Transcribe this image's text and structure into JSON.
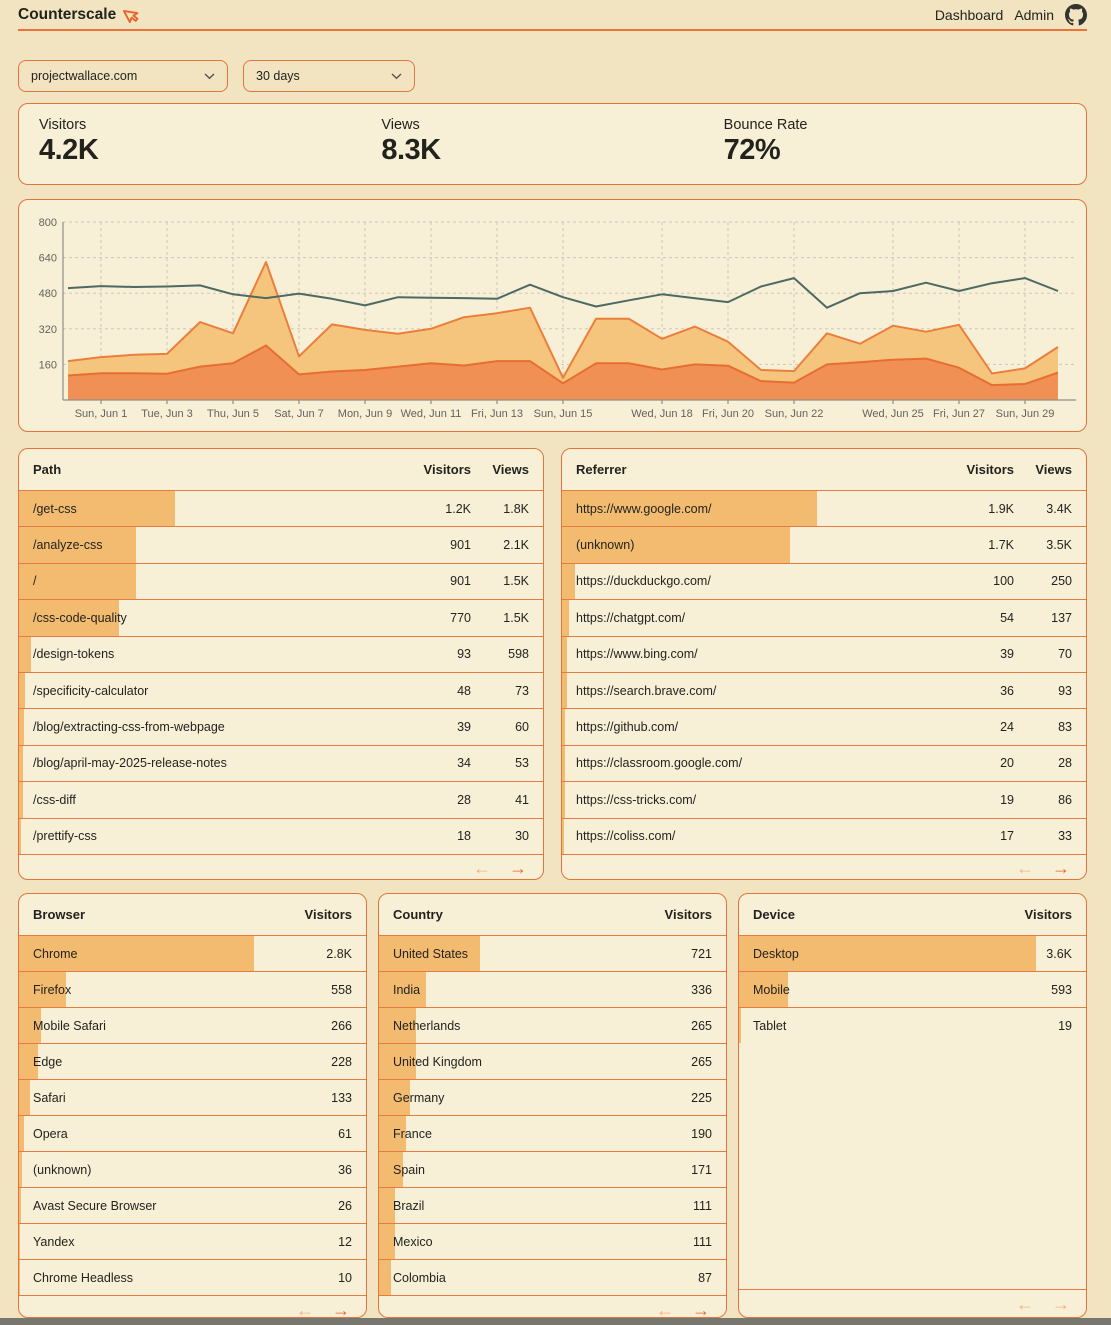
{
  "header": {
    "brand": "Counterscale",
    "nav": [
      "Dashboard",
      "Admin"
    ]
  },
  "filters": {
    "site_selected": "projectwallace.com",
    "range_selected": "30 days"
  },
  "stats": {
    "items": [
      {
        "label": "Visitors",
        "value": "4.2K"
      },
      {
        "label": "Views",
        "value": "8.3K"
      },
      {
        "label": "Bounce Rate",
        "value": "72%"
      }
    ]
  },
  "chart_data": {
    "type": "area",
    "title": "",
    "xlabel": "",
    "ylabel": "",
    "ylim": [
      0,
      800
    ],
    "yticks": [
      160,
      320,
      480,
      640,
      800
    ],
    "grid": true,
    "legend": "none",
    "num_points": 31,
    "xticks": [
      {
        "index": 1,
        "label": "Sun, Jun 1"
      },
      {
        "index": 3,
        "label": "Tue, Jun 3"
      },
      {
        "index": 5,
        "label": "Thu, Jun 5"
      },
      {
        "index": 7,
        "label": "Sat, Jun 7"
      },
      {
        "index": 9,
        "label": "Mon, Jun 9"
      },
      {
        "index": 11,
        "label": "Wed, Jun 11"
      },
      {
        "index": 13,
        "label": "Fri, Jun 13"
      },
      {
        "index": 15,
        "label": "Sun, Jun 15"
      },
      {
        "index": 18,
        "label": "Wed, Jun 18"
      },
      {
        "index": 20,
        "label": "Fri, Jun 20"
      },
      {
        "index": 22,
        "label": "Sun, Jun 22"
      },
      {
        "index": 25,
        "label": "Wed, Jun 25"
      },
      {
        "index": 27,
        "label": "Fri, Jun 27"
      },
      {
        "index": 29,
        "label": "Sun, Jun 29"
      }
    ],
    "series": [
      {
        "name": "views",
        "type": "area",
        "color": "#f6c57d",
        "stroke": "#ea7f3c",
        "values": [
          175,
          193,
          203,
          207,
          350,
          300,
          620,
          196,
          340,
          315,
          298,
          320,
          372,
          390,
          415,
          100,
          365,
          365,
          275,
          330,
          262,
          135,
          130,
          300,
          253,
          334,
          307,
          338,
          119,
          142,
          238
        ]
      },
      {
        "name": "visitors",
        "type": "area",
        "color": "#f09055",
        "stroke": "#e76e31",
        "values": [
          110,
          120,
          120,
          118,
          150,
          165,
          245,
          115,
          128,
          135,
          150,
          165,
          155,
          175,
          175,
          75,
          165,
          165,
          137,
          160,
          154,
          85,
          78,
          160,
          170,
          181,
          186,
          145,
          67,
          72,
          123
        ]
      },
      {
        "name": "unlabeled-trend-line",
        "type": "line",
        "color": "#4c6a62",
        "values": [
          503,
          512,
          508,
          510,
          515,
          475,
          458,
          478,
          455,
          425,
          462,
          460,
          458,
          455,
          518,
          462,
          420,
          448,
          475,
          457,
          440,
          510,
          548,
          415,
          480,
          490,
          527,
          490,
          525,
          548,
          490
        ]
      }
    ]
  },
  "tables": {
    "path": {
      "title": "Path",
      "value_headers": [
        "Visitors",
        "Views"
      ],
      "rows": [
        {
          "label": "/get-css",
          "values": [
            "1.2K",
            "1.8K"
          ],
          "num": 1200
        },
        {
          "label": "/analyze-css",
          "values": [
            "901",
            "2.1K"
          ],
          "num": 901
        },
        {
          "label": "/",
          "values": [
            "901",
            "1.5K"
          ],
          "num": 901
        },
        {
          "label": "/css-code-quality",
          "values": [
            "770",
            "1.5K"
          ],
          "num": 770
        },
        {
          "label": "/design-tokens",
          "values": [
            "93",
            "598"
          ],
          "num": 93
        },
        {
          "label": "/specificity-calculator",
          "values": [
            "48",
            "73"
          ],
          "num": 48
        },
        {
          "label": "/blog/extracting-css-from-webpage",
          "values": [
            "39",
            "60"
          ],
          "num": 39
        },
        {
          "label": "/blog/april-may-2025-release-notes",
          "values": [
            "34",
            "53"
          ],
          "num": 34
        },
        {
          "label": "/css-diff",
          "values": [
            "28",
            "41"
          ],
          "num": 28
        },
        {
          "label": "/prettify-css",
          "values": [
            "18",
            "30"
          ],
          "num": 18
        }
      ],
      "pagination": {
        "prev_enabled": false,
        "next_enabled": true
      }
    },
    "referrer": {
      "title": "Referrer",
      "value_headers": [
        "Visitors",
        "Views"
      ],
      "rows": [
        {
          "label": "https://www.google.com/",
          "values": [
            "1.9K",
            "3.4K"
          ],
          "num": 1900
        },
        {
          "label": "(unknown)",
          "values": [
            "1.7K",
            "3.5K"
          ],
          "num": 1700
        },
        {
          "label": "https://duckduckgo.com/",
          "values": [
            "100",
            "250"
          ],
          "num": 100
        },
        {
          "label": "https://chatgpt.com/",
          "values": [
            "54",
            "137"
          ],
          "num": 54
        },
        {
          "label": "https://www.bing.com/",
          "values": [
            "39",
            "70"
          ],
          "num": 39
        },
        {
          "label": "https://search.brave.com/",
          "values": [
            "36",
            "93"
          ],
          "num": 36
        },
        {
          "label": "https://github.com/",
          "values": [
            "24",
            "83"
          ],
          "num": 24
        },
        {
          "label": "https://classroom.google.com/",
          "values": [
            "20",
            "28"
          ],
          "num": 20
        },
        {
          "label": "https://css-tricks.com/",
          "values": [
            "19",
            "86"
          ],
          "num": 19
        },
        {
          "label": "https://coliss.com/",
          "values": [
            "17",
            "33"
          ],
          "num": 17
        }
      ],
      "pagination": {
        "prev_enabled": false,
        "next_enabled": true
      }
    },
    "browser": {
      "title": "Browser",
      "value_headers": [
        "Visitors"
      ],
      "rows": [
        {
          "label": "Chrome",
          "values": [
            "2.8K"
          ],
          "num": 2800
        },
        {
          "label": "Firefox",
          "values": [
            "558"
          ],
          "num": 558
        },
        {
          "label": "Mobile Safari",
          "values": [
            "266"
          ],
          "num": 266
        },
        {
          "label": "Edge",
          "values": [
            "228"
          ],
          "num": 228
        },
        {
          "label": "Safari",
          "values": [
            "133"
          ],
          "num": 133
        },
        {
          "label": "Opera",
          "values": [
            "61"
          ],
          "num": 61
        },
        {
          "label": "(unknown)",
          "values": [
            "36"
          ],
          "num": 36
        },
        {
          "label": "Avast Secure Browser",
          "values": [
            "26"
          ],
          "num": 26
        },
        {
          "label": "Yandex",
          "values": [
            "12"
          ],
          "num": 12
        },
        {
          "label": "Chrome Headless",
          "values": [
            "10"
          ],
          "num": 10
        }
      ],
      "pagination": {
        "prev_enabled": false,
        "next_enabled": true
      }
    },
    "country": {
      "title": "Country",
      "value_headers": [
        "Visitors"
      ],
      "rows": [
        {
          "label": "United States",
          "values": [
            "721"
          ],
          "num": 721
        },
        {
          "label": "India",
          "values": [
            "336"
          ],
          "num": 336
        },
        {
          "label": "Netherlands",
          "values": [
            "265"
          ],
          "num": 265
        },
        {
          "label": "United Kingdom",
          "values": [
            "265"
          ],
          "num": 265
        },
        {
          "label": "Germany",
          "values": [
            "225"
          ],
          "num": 225
        },
        {
          "label": "France",
          "values": [
            "190"
          ],
          "num": 190
        },
        {
          "label": "Spain",
          "values": [
            "171"
          ],
          "num": 171
        },
        {
          "label": "Brazil",
          "values": [
            "111"
          ],
          "num": 111
        },
        {
          "label": "Mexico",
          "values": [
            "111"
          ],
          "num": 111
        },
        {
          "label": "Colombia",
          "values": [
            "87"
          ],
          "num": 87
        }
      ],
      "pagination": {
        "prev_enabled": false,
        "next_enabled": true
      }
    },
    "device": {
      "title": "Device",
      "value_headers": [
        "Visitors"
      ],
      "rows": [
        {
          "label": "Desktop",
          "values": [
            "3.6K"
          ],
          "num": 3600
        },
        {
          "label": "Mobile",
          "values": [
            "593"
          ],
          "num": 593
        },
        {
          "label": "Tablet",
          "values": [
            "19"
          ],
          "num": 19
        }
      ],
      "pagination": {
        "prev_enabled": false,
        "next_enabled": false
      }
    }
  },
  "pagination_symbols": {
    "prev": "←",
    "next": "→"
  },
  "colors": {
    "page_bg": "#f2e4c1",
    "card_bg": "#f8efd7",
    "accent_orange": "#e8743a",
    "row_bar": "#f3bb70",
    "area_views": "#f6c57d",
    "area_visitors": "#f09055",
    "trend_line": "#4c6a62",
    "footer_strip": "#77776f"
  }
}
